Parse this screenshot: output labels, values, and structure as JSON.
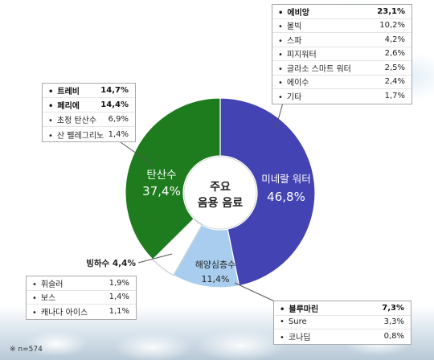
{
  "center_label": {
    "line1": "주요",
    "line2": "음용 음료"
  },
  "footnote": "※ n=574",
  "chart_data": {
    "type": "pie",
    "style": "donut",
    "slices": [
      {
        "label": "미네랄 워터",
        "value": 46.8,
        "value_label": "46,8%",
        "color": "#4343B3"
      },
      {
        "label": "해양심층수",
        "value": 11.4,
        "value_label": "11,4%",
        "color": "#A9CDEE"
      },
      {
        "label": "빙하수",
        "value": 4.4,
        "value_label": "4,4%",
        "color": "#FFFFFF"
      },
      {
        "label": "탄산수",
        "value": 37.4,
        "value_label": "37,4%",
        "color": "#1E7C1E"
      }
    ],
    "breakdowns": {
      "mineral_water": [
        {
          "name": "에비앙",
          "value": 23.1,
          "value_label": "23,1%",
          "highlight": true
        },
        {
          "name": "볼빅",
          "value": 10.2,
          "value_label": "10,2%",
          "highlight": false
        },
        {
          "name": "스파",
          "value": 4.2,
          "value_label": "4,2%",
          "highlight": false
        },
        {
          "name": "피지워터",
          "value": 2.6,
          "value_label": "2,6%",
          "highlight": false
        },
        {
          "name": "글라소 스마트 워터",
          "value": 2.5,
          "value_label": "2,5%",
          "highlight": false
        },
        {
          "name": "에이수",
          "value": 2.4,
          "value_label": "2,4%",
          "highlight": false
        },
        {
          "name": "기타",
          "value": 1.7,
          "value_label": "1,7%",
          "highlight": false
        }
      ],
      "sparkling_water": [
        {
          "name": "트레비",
          "value": 14.7,
          "value_label": "14,7%",
          "highlight": true
        },
        {
          "name": "페리에",
          "value": 14.4,
          "value_label": "14,4%",
          "highlight": true
        },
        {
          "name": "초정 탄산수",
          "value": 6.9,
          "value_label": "6,9%",
          "highlight": false
        },
        {
          "name": "산 펠레그리노",
          "value": 1.4,
          "value_label": "1,4%",
          "highlight": false
        }
      ],
      "glacier_water": [
        {
          "name": "휘슬러",
          "value": 1.9,
          "value_label": "1,9%",
          "highlight": false
        },
        {
          "name": "보스",
          "value": 1.4,
          "value_label": "1,4%",
          "highlight": false
        },
        {
          "name": "캐나다 아이스",
          "value": 1.1,
          "value_label": "1,1%",
          "highlight": false
        }
      ],
      "deep_sea_water": [
        {
          "name": "블루마린",
          "value": 7.3,
          "value_label": "7,3%",
          "highlight": true
        },
        {
          "name": "Sure",
          "value": 3.3,
          "value_label": "3,3%",
          "highlight": false
        },
        {
          "name": "코나딥",
          "value": 0.8,
          "value_label": "0,8%",
          "highlight": false
        }
      ]
    }
  }
}
